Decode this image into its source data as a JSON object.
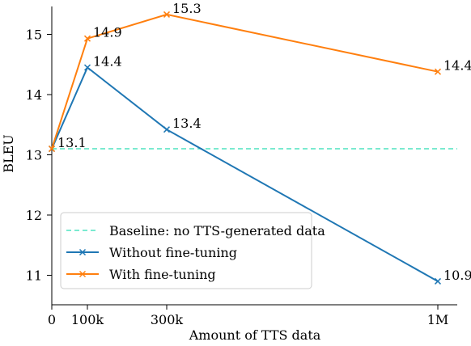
{
  "chart_data": {
    "type": "line",
    "xlabel": "Amount of TTS data",
    "ylabel": "BLEU",
    "x_ticks": [
      {
        "value": 0,
        "label": "0"
      },
      {
        "value": 100000,
        "label": "100k"
      },
      {
        "value": 300000,
        "label": "300k"
      },
      {
        "value": 1000000,
        "label": "1M"
      }
    ],
    "y_ticks": [
      {
        "value": 11,
        "label": "11"
      },
      {
        "value": 12,
        "label": "12"
      },
      {
        "value": 13,
        "label": "13"
      },
      {
        "value": 14,
        "label": "14"
      },
      {
        "value": 15,
        "label": "15"
      }
    ],
    "xlim": [
      0,
      1000000
    ],
    "ylim": [
      10.7,
      15.4
    ],
    "x_axis_scale": "nonlinear (0, 100k, 300k, 1M spaced unevenly)",
    "grid": false,
    "legend_position": "lower-left",
    "baseline": {
      "name": "Baseline: no TTS-generated data",
      "value": 13.1,
      "color": "#4fe3c1",
      "style": "dashed"
    },
    "series": [
      {
        "name": "Without fine-tuning",
        "color": "#1f77b4",
        "marker": "x",
        "x": [
          0,
          100000,
          300000,
          1000000
        ],
        "values": [
          13.1,
          14.45,
          13.42,
          10.9
        ],
        "labels": [
          "",
          "14.4",
          "13.4",
          "10.9"
        ]
      },
      {
        "name": "With fine-tuning",
        "color": "#ff7f0e",
        "marker": "x",
        "x": [
          0,
          100000,
          300000,
          1000000
        ],
        "values": [
          13.1,
          14.93,
          15.33,
          14.38
        ],
        "labels": [
          "13.1",
          "14.9",
          "15.3",
          "14.4"
        ]
      }
    ]
  }
}
